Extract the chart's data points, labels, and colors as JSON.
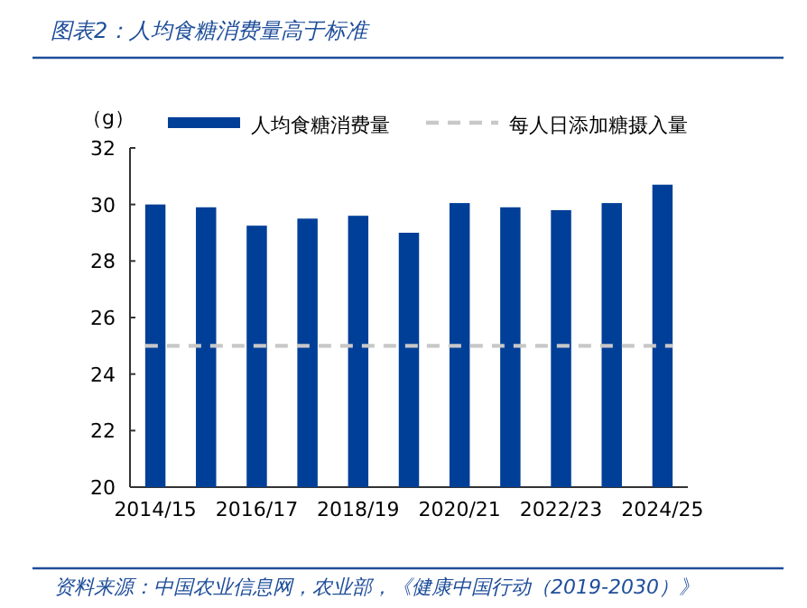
{
  "chart_data": {
    "type": "bar",
    "title": "图表2：人均食糖消费量高于标准",
    "ylabel": "（g）",
    "categories": [
      "2014/15",
      null,
      "2016/17",
      null,
      "2018/19",
      null,
      "2020/21",
      null,
      "2022/23",
      null,
      "2024/25"
    ],
    "series": [
      {
        "name": "人均食糖消费量",
        "color": "#003f98",
        "values": [
          30.0,
          29.9,
          29.25,
          29.5,
          29.6,
          29.0,
          30.05,
          29.9,
          29.8,
          30.05,
          30.7
        ]
      }
    ],
    "ref_lines": [
      {
        "axis": "y",
        "value": 25,
        "label": "每人日添加糖摄入量",
        "color": "#c8c8c8",
        "line_style": "dashed"
      }
    ],
    "ylim": [
      20,
      32
    ],
    "yticks": [
      20,
      22,
      24,
      26,
      28,
      30,
      32
    ],
    "legend": "top",
    "annotations": [
      "资料来源：中国农业信息网，农业部，《健康中国行动（2019-2030）》"
    ]
  }
}
